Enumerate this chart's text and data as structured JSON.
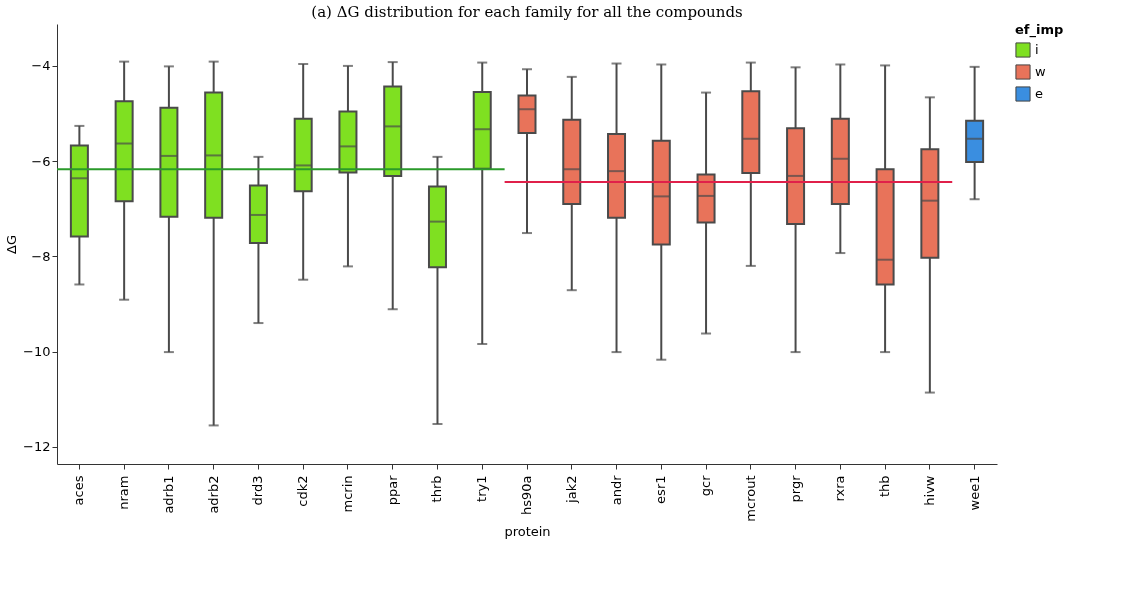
{
  "chart_data": {
    "type": "box",
    "title": "(a) ΔG distribution for each family for all the compounds",
    "xlabel": "protein",
    "ylabel": "ΔG",
    "legend_title": "ef_imp",
    "legend": "right",
    "grid": false,
    "categories": [
      "aces",
      "nram",
      "adrb1",
      "adrb2",
      "drd3",
      "cdk2",
      "mcrin",
      "ppar",
      "thrb",
      "try1",
      "hs90a",
      "jak2",
      "andr",
      "esr1",
      "gcr",
      "mcrout",
      "prgr",
      "rxra",
      "thb",
      "hivw",
      "wee1"
    ],
    "ylim": [
      -12.36,
      -3.12
    ],
    "yticks": [
      -12,
      -10,
      -8,
      -6,
      -4
    ],
    "series": [
      {
        "name": "i",
        "color": "#7fe021",
        "boxes": [
          {
            "low": -8.59,
            "q1": -7.58,
            "median": -6.36,
            "q3": -5.67,
            "high": -5.26
          },
          {
            "low": -8.91,
            "q1": -6.84,
            "median": -5.63,
            "q3": -4.74,
            "high": -3.91
          },
          {
            "low": -10.01,
            "q1": -7.17,
            "median": -5.89,
            "q3": -4.88,
            "high": -4.01
          },
          {
            "low": -11.55,
            "q1": -7.19,
            "median": -5.88,
            "q3": -4.56,
            "high": -3.91
          },
          {
            "low": -9.4,
            "q1": -7.72,
            "median": -7.13,
            "q3": -6.51,
            "high": -5.91
          },
          {
            "low": -8.49,
            "q1": -6.63,
            "median": -6.09,
            "q3": -5.11,
            "high": -3.96
          },
          {
            "low": -8.21,
            "q1": -6.24,
            "median": -5.69,
            "q3": -4.96,
            "high": -4.0
          },
          {
            "low": -9.11,
            "q1": -6.31,
            "median": -5.27,
            "q3": -4.43,
            "high": -3.92
          },
          {
            "low": -11.52,
            "q1": -8.23,
            "median": -7.27,
            "q3": -6.53,
            "high": -5.91
          },
          {
            "low": -9.84,
            "q1": -6.16,
            "median": -5.33,
            "q3": -4.55,
            "high": -3.93
          },
          null,
          null,
          null,
          null,
          null,
          null,
          null,
          null,
          null,
          null,
          null
        ]
      },
      {
        "name": "w",
        "color": "#e8735a",
        "boxes": [
          null,
          null,
          null,
          null,
          null,
          null,
          null,
          null,
          null,
          null,
          {
            "low": -7.51,
            "q1": -5.41,
            "median": -4.91,
            "q3": -4.62,
            "high": -4.07
          },
          {
            "low": -8.71,
            "q1": -6.9,
            "median": -6.17,
            "q3": -5.13,
            "high": -4.23
          },
          {
            "low": -10.01,
            "q1": -7.19,
            "median": -6.21,
            "q3": -5.43,
            "high": -3.95
          },
          {
            "low": -10.17,
            "q1": -7.75,
            "median": -6.74,
            "q3": -5.57,
            "high": -3.97
          },
          {
            "low": -9.62,
            "q1": -7.29,
            "median": -6.73,
            "q3": -6.28,
            "high": -4.56
          },
          {
            "low": -8.2,
            "q1": -6.25,
            "median": -5.53,
            "q3": -4.53,
            "high": -3.93
          },
          {
            "low": -10.01,
            "q1": -7.32,
            "median": -6.31,
            "q3": -5.31,
            "high": -4.03
          },
          {
            "low": -7.93,
            "q1": -6.9,
            "median": -5.95,
            "q3": -5.11,
            "high": -3.97
          },
          {
            "low": -10.01,
            "q1": -8.59,
            "median": -8.07,
            "q3": -6.17,
            "high": -3.99
          },
          {
            "low": -10.86,
            "q1": -8.03,
            "median": -6.83,
            "q3": -5.75,
            "high": -4.66
          },
          null
        ]
      },
      {
        "name": "e",
        "color": "#3a8ee0",
        "boxes": [
          null,
          null,
          null,
          null,
          null,
          null,
          null,
          null,
          null,
          null,
          null,
          null,
          null,
          null,
          null,
          null,
          null,
          null,
          null,
          null,
          {
            "low": -6.8,
            "q1": -6.02,
            "median": -5.53,
            "q3": -5.15,
            "high": -4.02
          }
        ]
      }
    ],
    "ref_lines": [
      {
        "axis": "y",
        "value": -6.17,
        "color": "#2a9a2a"
      },
      {
        "axis": "y",
        "value": -6.44,
        "color": "#e0204a"
      }
    ]
  }
}
